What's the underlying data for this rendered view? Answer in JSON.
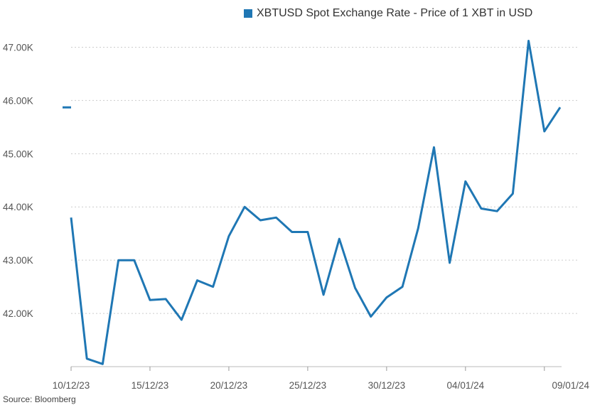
{
  "chart_data": {
    "type": "line",
    "title": "",
    "xlabel": "",
    "ylabel": "",
    "legend": {
      "position": "top-right",
      "color": "#1f77b4"
    },
    "grid": {
      "horizontal": true,
      "vertical": false,
      "style": "dotted"
    },
    "ylim": [
      41000,
      47300
    ],
    "y_ticks": [
      42000,
      43000,
      44000,
      45000,
      46000,
      47000
    ],
    "y_tick_labels": [
      "42.00K",
      "43.00K",
      "44.00K",
      "45.00K",
      "46.00K",
      "47.00K"
    ],
    "x_tick_labels": [
      "10/12/23",
      "15/12/23",
      "20/12/23",
      "25/12/23",
      "30/12/23",
      "04/01/24",
      "09/01/24"
    ],
    "last_value_marker": 45870,
    "series": [
      {
        "name": "XBTUSD Spot Exchange Rate - Price of 1 XBT in USD",
        "color": "#1f77b4",
        "points": [
          [
            "2023-12-10",
            43800
          ],
          [
            "2023-12-11",
            41150
          ],
          [
            "2023-12-12",
            41050
          ],
          [
            "2023-12-13",
            43000
          ],
          [
            "2023-12-14",
            43000
          ],
          [
            "2023-12-15",
            42250
          ],
          [
            "2023-12-16",
            42270
          ],
          [
            "2023-12-17",
            41880
          ],
          [
            "2023-12-18",
            42620
          ],
          [
            "2023-12-19",
            42500
          ],
          [
            "2023-12-20",
            43450
          ],
          [
            "2023-12-21",
            44000
          ],
          [
            "2023-12-22",
            43750
          ],
          [
            "2023-12-23",
            43800
          ],
          [
            "2023-12-24",
            43530
          ],
          [
            "2023-12-25",
            43530
          ],
          [
            "2023-12-26",
            42350
          ],
          [
            "2023-12-27",
            43400
          ],
          [
            "2023-12-28",
            42480
          ],
          [
            "2023-12-29",
            41940
          ],
          [
            "2023-12-30",
            42300
          ],
          [
            "2023-12-31",
            42500
          ],
          [
            "2024-01-01",
            43600
          ],
          [
            "2024-01-02",
            45120
          ],
          [
            "2024-01-03",
            42950
          ],
          [
            "2024-01-04",
            44480
          ],
          [
            "2024-01-05",
            43970
          ],
          [
            "2024-01-06",
            43920
          ],
          [
            "2024-01-07",
            44250
          ],
          [
            "2024-01-08",
            47120
          ],
          [
            "2024-01-09",
            45420
          ],
          [
            "2024-01-10",
            45870
          ]
        ]
      }
    ]
  },
  "source": "Source: Bloomberg"
}
